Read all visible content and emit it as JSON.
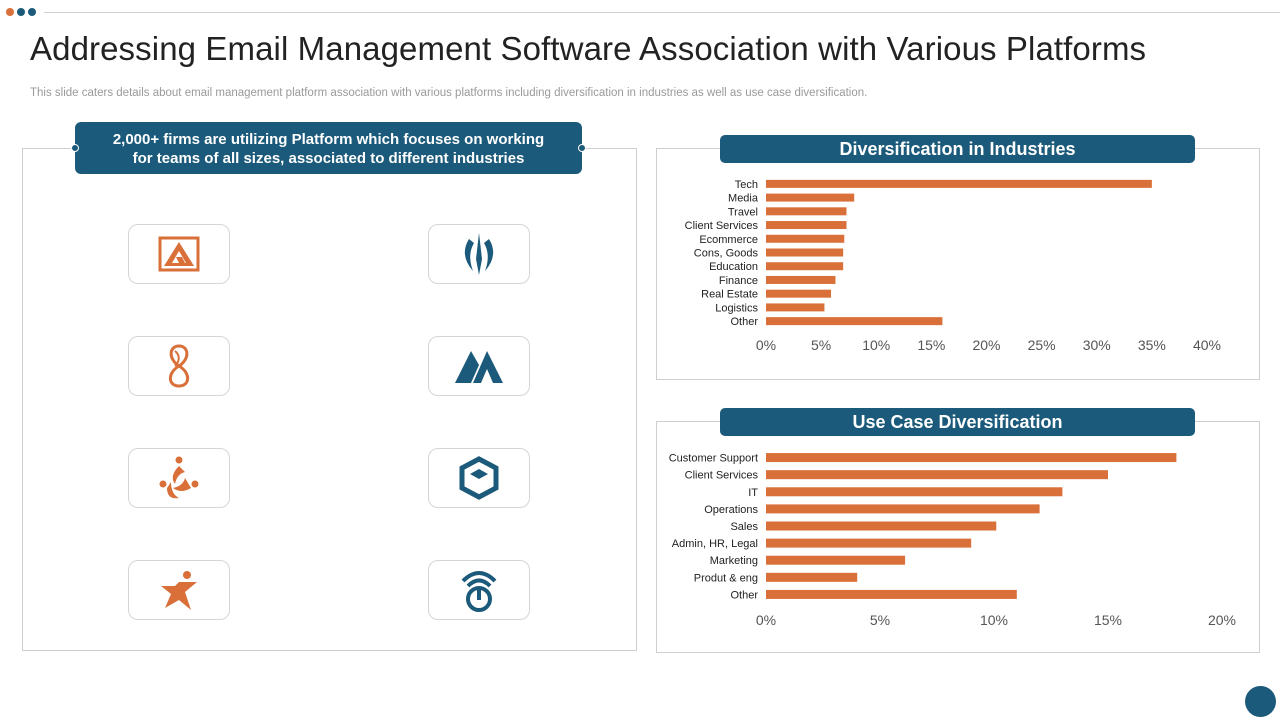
{
  "colors": {
    "accent": "#1b5a7a",
    "bar": "#d9703a",
    "dot_orange": "#d9703a",
    "dot_navy": "#1b5a7a"
  },
  "slide": {
    "title": "Addressing Email Management Software Association with Various Platforms",
    "subtitle": "This slide caters details about email management platform association with various platforms including diversification in industries as well as use case diversification."
  },
  "callout": {
    "line1": "2,000+ firms are utilizing Platform which focuses on working",
    "line2": "for teams of all sizes, associated to different industries"
  },
  "logos": [
    {
      "icon": "triangle-a-logo-icon",
      "color": "#d9703a"
    },
    {
      "icon": "trident-logo-icon",
      "color": "#1b5a7a"
    },
    {
      "icon": "figure-eight-logo-icon",
      "color": "#d9703a"
    },
    {
      "icon": "double-peak-logo-icon",
      "color": "#1b5a7a"
    },
    {
      "icon": "swirl-people-logo-icon",
      "color": "#d9703a"
    },
    {
      "icon": "hexagon-box-logo-icon",
      "color": "#1b5a7a"
    },
    {
      "icon": "star-person-logo-icon",
      "color": "#d9703a"
    },
    {
      "icon": "signal-power-logo-icon",
      "color": "#1b5a7a"
    }
  ],
  "chart_data": [
    {
      "type": "bar",
      "orientation": "horizontal",
      "title": "Diversification in Industries",
      "categories": [
        "Tech",
        "Media",
        "Travel",
        "Client Services",
        "Ecommerce",
        "Cons, Goods",
        "Education",
        "Finance",
        "Real Estate",
        "Logistics",
        "Other"
      ],
      "values": [
        35,
        8,
        7.3,
        7.3,
        7.1,
        7,
        7,
        6.3,
        5.9,
        5.3,
        16
      ],
      "xlim": [
        0,
        40
      ],
      "xticks": [
        "0%",
        "5%",
        "10%",
        "15%",
        "20%",
        "25%",
        "30%",
        "35%",
        "40%"
      ],
      "xtick_values": [
        0,
        5,
        10,
        15,
        20,
        25,
        30,
        35,
        40
      ],
      "grid": false,
      "legend": "none"
    },
    {
      "type": "bar",
      "orientation": "horizontal",
      "title": "Use Case Diversification",
      "categories": [
        "Customer Support",
        "Client Services",
        "IT",
        "Operations",
        "Sales",
        "Admin, HR, Legal",
        "Marketing",
        "Produt & eng",
        "Other"
      ],
      "values": [
        18,
        15,
        13,
        12,
        10.1,
        9,
        6.1,
        4,
        11
      ],
      "xlim": [
        0,
        20
      ],
      "xticks": [
        "0%",
        "5%",
        "10%",
        "15%",
        "20%"
      ],
      "xtick_values": [
        0,
        5,
        10,
        15,
        20
      ],
      "grid": false,
      "legend": "none"
    }
  ]
}
